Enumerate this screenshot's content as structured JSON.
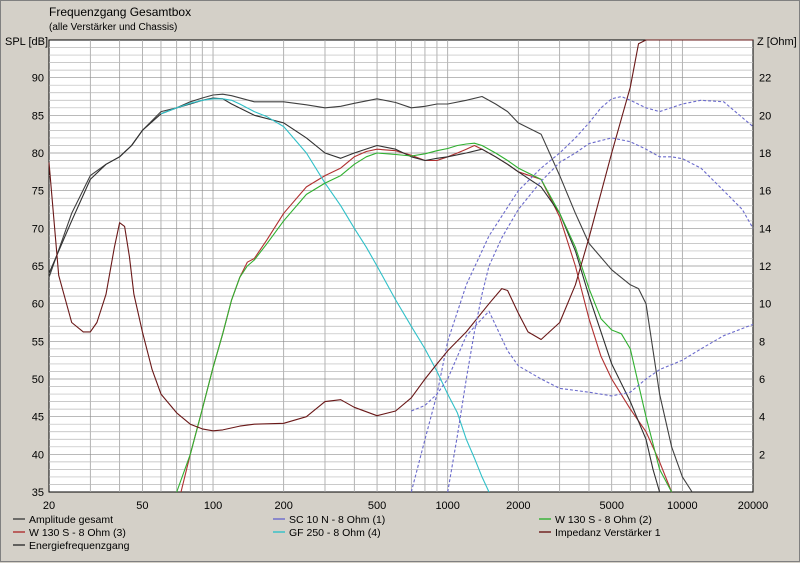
{
  "chart_data": {
    "type": "line",
    "title": "Frequenzgang Gesamtbox",
    "subtitle": "(alle Verstärker und Chassis)",
    "ylabel": "SPL [dB]",
    "y2label": "Z [Ohm]",
    "xlabel": "",
    "x_scale": "log",
    "xlim": [
      20,
      20000
    ],
    "ylim": [
      35,
      95
    ],
    "y2lim": [
      0,
      24
    ],
    "grid": true,
    "legend_position": "bottom",
    "x_ticks": [
      20,
      50,
      100,
      200,
      500,
      1000,
      2000,
      5000,
      10000,
      20000
    ],
    "x_tick_labels": [
      "20",
      "50",
      "100",
      "200",
      "500",
      "1000",
      "2000",
      "5000",
      "10000",
      "20000"
    ],
    "y_ticks": [
      35,
      40,
      45,
      50,
      55,
      60,
      65,
      70,
      75,
      80,
      85,
      90
    ],
    "y_tick_labels": [
      "35",
      "40",
      "45",
      "50",
      "55",
      "60",
      "65",
      "70",
      "75",
      "80",
      "85",
      "90"
    ],
    "y2_ticks": [
      2,
      4,
      6,
      8,
      10,
      12,
      14,
      16,
      18,
      20,
      22
    ],
    "y2_tick_labels": [
      "2",
      "4",
      "6",
      "8",
      "10",
      "12",
      "14",
      "16",
      "18",
      "20",
      "22"
    ],
    "series": [
      {
        "name": "Amplitude gesamt",
        "color": "#404040",
        "axis": "left",
        "dash": false,
        "x": [
          20,
          25,
          30,
          35,
          40,
          45,
          50,
          60,
          70,
          80,
          90,
          100,
          110,
          120,
          150,
          200,
          250,
          300,
          350,
          400,
          500,
          600,
          700,
          800,
          900,
          1000,
          1200,
          1400,
          1600,
          1800,
          2000,
          2500,
          3000,
          3500,
          4000,
          5000,
          6000,
          6500,
          7000,
          8000,
          9000,
          10000,
          11000
        ],
        "y": [
          63.5,
          72,
          77,
          78.5,
          79.5,
          81,
          83,
          85.5,
          86,
          86.8,
          87.3,
          87.7,
          87.8,
          87.6,
          86.8,
          86.8,
          86.4,
          86,
          86.2,
          86.6,
          87.2,
          86.7,
          86,
          86.2,
          86.5,
          86.5,
          87,
          87.5,
          86.5,
          85.5,
          84,
          82.5,
          77,
          72,
          68,
          64.5,
          62.5,
          62,
          60,
          48,
          41,
          37,
          35
        ]
      },
      {
        "name": "W 130 S - 8 Ohm (3)",
        "color": "#b03030",
        "axis": "left",
        "dash": false,
        "x": [
          73,
          80,
          90,
          100,
          110,
          120,
          130,
          140,
          150,
          170,
          200,
          250,
          300,
          350,
          400,
          450,
          500,
          600,
          700,
          800,
          900,
          1000,
          1100,
          1200,
          1300,
          1400,
          1600,
          1800,
          2000,
          2500,
          3000,
          3500,
          4000,
          4500,
          5000,
          6000,
          7000,
          8000,
          9000
        ],
        "y": [
          35,
          40,
          46,
          51.5,
          56,
          60.5,
          63.5,
          65.5,
          66,
          68.5,
          72,
          75.5,
          77,
          78,
          79.5,
          80.2,
          80.5,
          80.3,
          79.7,
          79,
          79,
          79.5,
          80,
          80.5,
          81,
          80.5,
          79.5,
          78.5,
          77.5,
          76.5,
          71.5,
          65,
          58,
          53,
          50,
          46,
          43,
          39,
          35
        ]
      },
      {
        "name": "Energiefrequenzgang",
        "color": "#303030",
        "axis": "left",
        "dash": false,
        "x": [
          20,
          25,
          30,
          35,
          40,
          45,
          50,
          60,
          70,
          80,
          90,
          100,
          110,
          120,
          150,
          200,
          250,
          300,
          350,
          400,
          500,
          600,
          700,
          800,
          900,
          1000,
          1200,
          1400,
          1600,
          1800,
          2000,
          2500,
          3000,
          3500,
          4000,
          5000,
          6000,
          7000,
          7500,
          8000
        ],
        "y": [
          64,
          71,
          76.5,
          78.5,
          79.5,
          81,
          83,
          85.2,
          86,
          86.5,
          87,
          87.3,
          87.2,
          86.5,
          85,
          84,
          82,
          80,
          79.3,
          80,
          81,
          80.5,
          79.5,
          79,
          79.3,
          79.5,
          80,
          80.5,
          79.5,
          78.5,
          77.5,
          75.5,
          72,
          67,
          61,
          52,
          47,
          42,
          38,
          35
        ]
      },
      {
        "name": "SC 10 N - 8 Ohm (1)",
        "color": "#6a6acc",
        "axis": "left",
        "dash": true,
        "x": [
          700,
          800,
          900,
          1000,
          1200,
          1500,
          2000,
          2500,
          3000,
          3500,
          4000,
          4500,
          5000,
          5500,
          6000,
          7000,
          8000,
          10000,
          12000,
          15000,
          20000
        ],
        "y": [
          35,
          42,
          48,
          55,
          62.5,
          69,
          75,
          78,
          80,
          82,
          84,
          86,
          87.2,
          87.5,
          87,
          86,
          85.5,
          86.5,
          87,
          86.8,
          83.5
        ]
      },
      {
        "name": "GF 250 - 8 Ohm (4)",
        "color": "#30c0c8",
        "axis": "left",
        "dash": false,
        "x": [
          60,
          70,
          80,
          90,
          100,
          110,
          120,
          130,
          150,
          170,
          200,
          250,
          300,
          350,
          400,
          450,
          500,
          600,
          700,
          800,
          900,
          1000,
          1100,
          1200,
          1300,
          1400,
          1500
        ],
        "y": [
          85.2,
          86,
          86.6,
          87,
          87.2,
          87.2,
          87,
          86.5,
          85.5,
          84.8,
          83.5,
          80,
          76,
          73,
          70,
          67.5,
          65,
          60.5,
          57,
          54,
          51,
          48,
          45.5,
          42,
          39.5,
          37,
          35
        ]
      },
      {
        "name": "W 130 S - 8 Ohm (2)",
        "color": "#30b030",
        "axis": "left",
        "dash": false,
        "x": [
          70,
          80,
          90,
          100,
          110,
          120,
          130,
          140,
          150,
          170,
          200,
          250,
          300,
          350,
          400,
          450,
          500,
          600,
          700,
          800,
          900,
          1000,
          1100,
          1200,
          1300,
          1400,
          1600,
          1800,
          2000,
          2500,
          3000,
          3500,
          4000,
          4500,
          5000,
          5500,
          6000,
          7000,
          8000,
          9000
        ],
        "y": [
          35,
          40,
          46,
          51.5,
          56,
          60.5,
          63.5,
          65,
          65.8,
          68,
          71,
          74.5,
          76,
          77,
          78.5,
          79.5,
          80,
          79.8,
          79.6,
          79.9,
          80.3,
          80.6,
          81,
          81.2,
          81.3,
          81,
          80,
          79,
          78,
          76.5,
          72,
          67.5,
          62,
          58,
          56.5,
          56,
          54,
          45,
          38,
          35
        ]
      },
      {
        "name": "Impedanz Verstärker 1",
        "color": "#6a1818",
        "axis": "right",
        "dash": false,
        "x": [
          20,
          22,
          25,
          28,
          30,
          32,
          35,
          38,
          40,
          42,
          44,
          46,
          50,
          55,
          60,
          70,
          80,
          90,
          100,
          110,
          130,
          150,
          200,
          250,
          300,
          350,
          400,
          500,
          600,
          700,
          800,
          900,
          1000,
          1200,
          1500,
          1700,
          1800,
          2000,
          2200,
          2500,
          3000,
          3500,
          4000,
          5000,
          6000,
          6500,
          7000,
          20000
        ],
        "y": [
          17.5,
          11.5,
          9,
          8.5,
          8.5,
          9,
          10.5,
          13,
          14.3,
          14.1,
          12.5,
          10.5,
          8.5,
          6.5,
          5.2,
          4.2,
          3.6,
          3.35,
          3.25,
          3.3,
          3.5,
          3.6,
          3.65,
          4,
          4.8,
          4.9,
          4.5,
          4.05,
          4.3,
          5,
          6,
          6.8,
          7.5,
          8.5,
          10,
          10.8,
          10.7,
          9.5,
          8.5,
          8.1,
          9,
          11,
          13.5,
          18,
          21.5,
          23.8,
          24,
          24
        ]
      },
      {
        "name": "",
        "color": "#6a6acc",
        "axis": "right",
        "dash": true,
        "x": [
          700,
          800,
          900,
          1000,
          1200,
          1500,
          1800,
          2000,
          2500,
          3000,
          4000,
          5000,
          6000,
          7000,
          8000,
          10000,
          12000,
          15000,
          20000
        ],
        "y": [
          4.3,
          4.6,
          5.2,
          6,
          8.3,
          9.6,
          7.5,
          6.7,
          6,
          5.5,
          5.3,
          5.1,
          5.3,
          6,
          6.5,
          7,
          7.6,
          8.3,
          8.9
        ]
      },
      {
        "name": "",
        "color": "#6a6acc",
        "axis": "right",
        "dash": true,
        "x": [
          1000,
          1100,
          1200,
          1300,
          1400,
          1500,
          1700,
          2000,
          2500,
          3000,
          3500,
          4000,
          5000,
          6000,
          7000,
          8000,
          9000,
          10000,
          12000,
          15000,
          18000,
          20000
        ],
        "y": [
          0,
          3,
          6,
          8.5,
          10.5,
          12,
          13.5,
          15,
          16.5,
          17.5,
          18,
          18.5,
          18.8,
          18.6,
          18.2,
          17.8,
          17.8,
          17.7,
          17.2,
          16,
          15,
          14
        ]
      }
    ]
  },
  "legend": {
    "col1": [
      "Amplitude gesamt",
      "W 130 S - 8 Ohm (3)",
      "Energiefrequenzgang"
    ],
    "col2": [
      "SC 10 N - 8 Ohm (1)",
      "GF 250 - 8 Ohm (4)"
    ],
    "col3": [
      "W 130 S - 8 Ohm (2)",
      "Impedanz Verstärker 1"
    ]
  }
}
